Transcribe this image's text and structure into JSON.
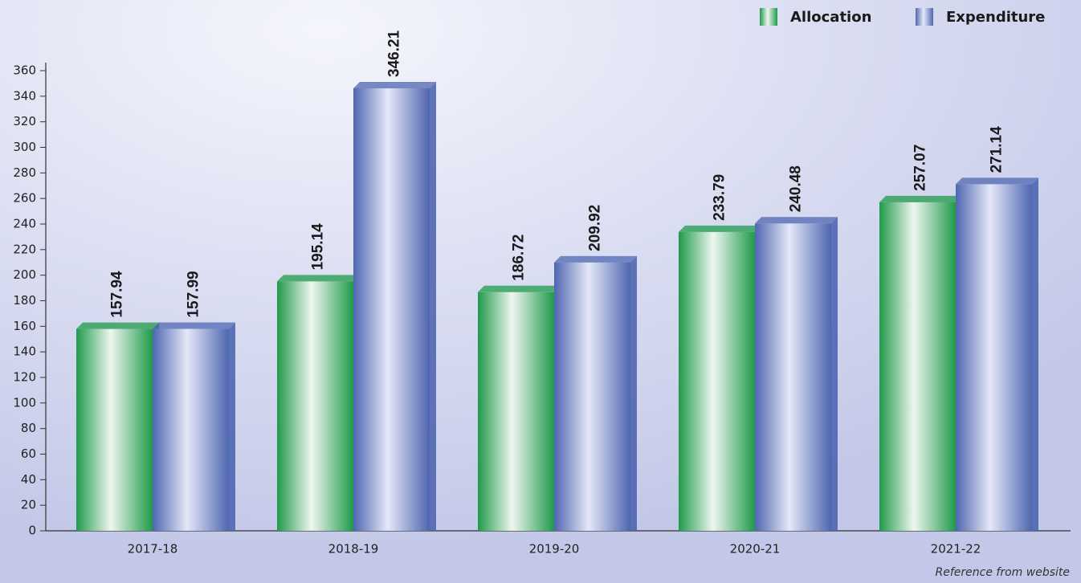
{
  "chart_data": {
    "type": "bar",
    "categories": [
      "2017-18",
      "2018-19",
      "2019-20",
      "2020-21",
      "2021-22"
    ],
    "series": [
      {
        "name": "Allocation",
        "color": "#1f9a4a",
        "values": [
          157.94,
          195.14,
          186.72,
          233.79,
          257.07
        ]
      },
      {
        "name": "Expenditure",
        "color": "#4f66b0",
        "values": [
          157.99,
          346.21,
          209.92,
          240.48,
          271.14
        ]
      }
    ],
    "ylim": [
      0,
      360
    ],
    "yticks": [
      0,
      20,
      40,
      60,
      80,
      100,
      120,
      140,
      160,
      180,
      200,
      220,
      240,
      260,
      280,
      300,
      320,
      340,
      360
    ],
    "legend": "top-right",
    "annotation": "Reference from website"
  }
}
